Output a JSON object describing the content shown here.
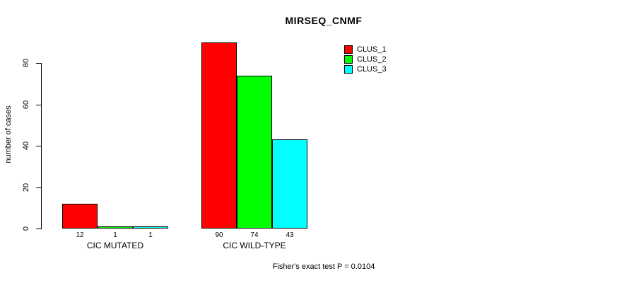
{
  "title": "MIRSEQ_CNMF",
  "footer": "Fisher's exact test P = 0.0104",
  "y_axis": {
    "label": "number of cases",
    "ticks": [
      0,
      20,
      40,
      60,
      80
    ]
  },
  "legend": {
    "entries": [
      {
        "label": "CLUS_1",
        "color": "#ff0000"
      },
      {
        "label": "CLUS_2",
        "color": "#00ff00"
      },
      {
        "label": "CLUS_3",
        "color": "#00ffff"
      }
    ],
    "position": "top-right"
  },
  "chart_data": {
    "type": "bar",
    "grouped": true,
    "categories": [
      "CIC MUTATED",
      "CIC WILD-TYPE"
    ],
    "series": [
      {
        "name": "CLUS_1",
        "color": "#ff0000",
        "values": [
          12,
          90
        ]
      },
      {
        "name": "CLUS_2",
        "color": "#00ff00",
        "values": [
          1,
          74
        ]
      },
      {
        "name": "CLUS_3",
        "color": "#00ffff",
        "values": [
          1,
          43
        ]
      }
    ],
    "bar_value_labels": [
      [
        12,
        1,
        1
      ],
      [
        90,
        74,
        43
      ]
    ],
    "title": "MIRSEQ_CNMF",
    "xlabel": "",
    "ylabel": "number of cases",
    "ylim": [
      0,
      80
    ],
    "grid": false,
    "bar_border_color": "#000000",
    "legend_position": "top-right",
    "annotation": "Fisher's exact test P = 0.0104"
  }
}
